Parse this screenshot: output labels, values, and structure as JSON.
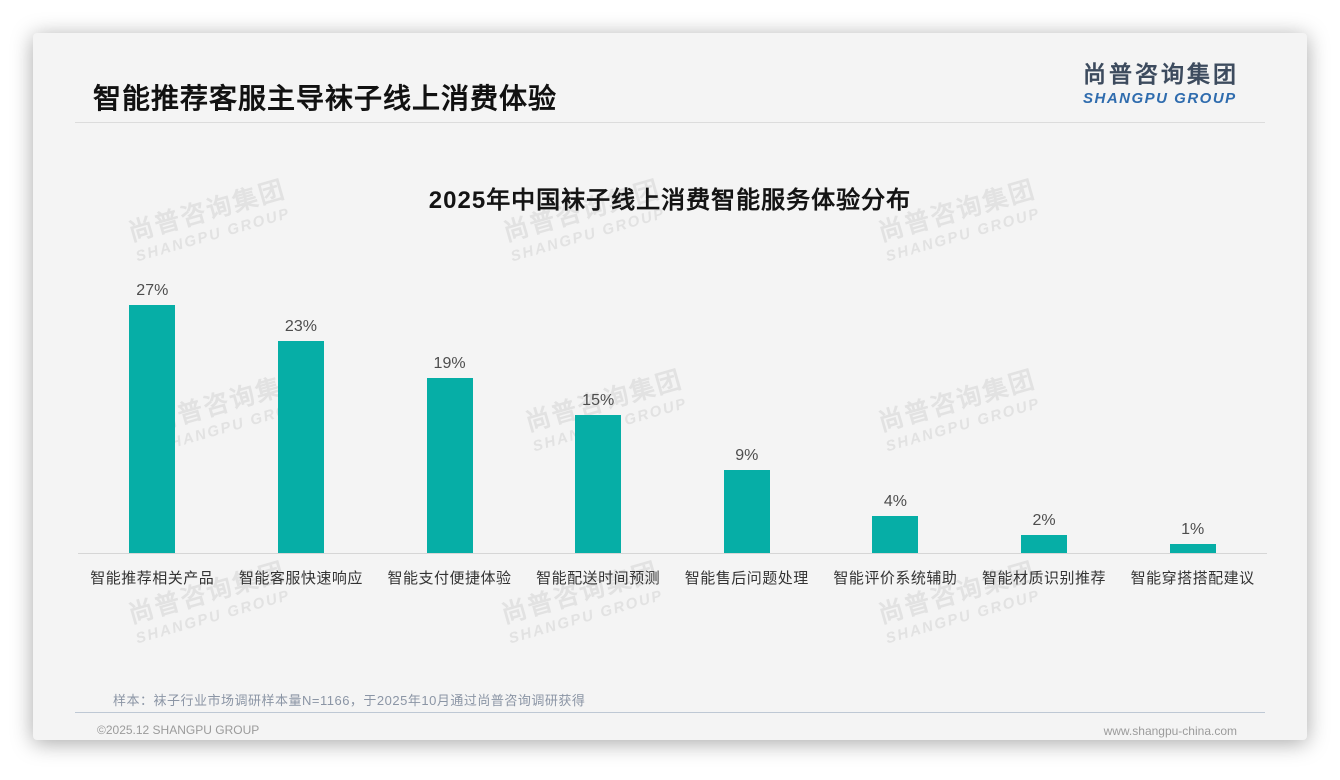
{
  "header": {
    "title": "智能推荐客服主导袜子线上消费体验"
  },
  "logo": {
    "cn": "尚普咨询集团",
    "en": "SHANGPU GROUP"
  },
  "chart_data": {
    "type": "bar",
    "title": "2025年中国袜子线上消费智能服务体验分布",
    "categories": [
      "智能推荐相关产品",
      "智能客服快速响应",
      "智能支付便捷体验",
      "智能配送时间预测",
      "智能售后问题处理",
      "智能评价系统辅助",
      "智能材质识别推荐",
      "智能穿搭搭配建议"
    ],
    "values": [
      27,
      23,
      19,
      15,
      9,
      4,
      2,
      1
    ],
    "value_labels": [
      "27%",
      "23%",
      "19%",
      "15%",
      "9%",
      "4%",
      "2%",
      "1%"
    ],
    "bar_color": "#06aea6",
    "xlabel": "",
    "ylabel": "",
    "ylim": [
      0,
      30
    ],
    "grid": false,
    "legend": "none"
  },
  "watermark": {
    "cn": "尚普咨询集团",
    "en": "SHANGPU GROUP"
  },
  "footer": {
    "note": "样本：袜子行业市场调研样本量N=1166，于2025年10月通过尚普咨询调研获得",
    "copyright": "©2025.12 SHANGPU GROUP",
    "website": "www.shangpu-china.com"
  }
}
